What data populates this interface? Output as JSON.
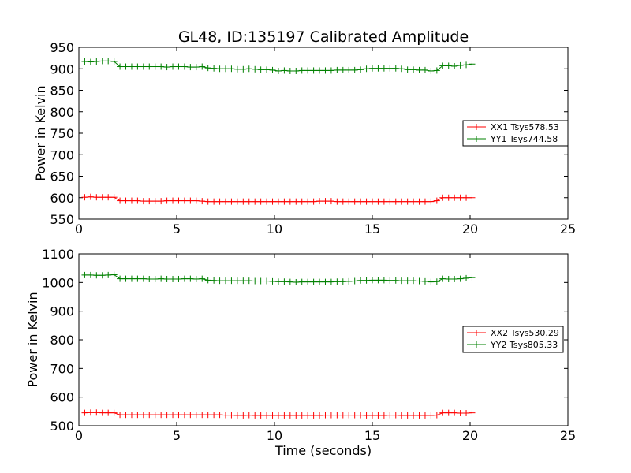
{
  "chart_data": [
    {
      "type": "line",
      "title": "GL48, ID:135197 Calibrated Amplitude",
      "xlabel": "",
      "ylabel": "Power in Kelvin",
      "xlim": [
        0,
        25
      ],
      "ylim": [
        550,
        950
      ],
      "xticks": [
        "0",
        "5",
        "10",
        "15",
        "20",
        "25"
      ],
      "yticks": [
        "550",
        "600",
        "650",
        "700",
        "750",
        "800",
        "850",
        "900",
        "950"
      ],
      "grid": false,
      "legend_position": "center-right",
      "x": [
        0.3,
        0.6,
        0.9,
        1.2,
        1.5,
        1.8,
        2.1,
        2.4,
        2.7,
        3.0,
        3.3,
        3.6,
        3.9,
        4.2,
        4.5,
        4.8,
        5.1,
        5.4,
        5.7,
        6.0,
        6.3,
        6.6,
        6.9,
        7.2,
        7.5,
        7.8,
        8.1,
        8.4,
        8.7,
        9.0,
        9.3,
        9.6,
        9.9,
        10.2,
        10.5,
        10.8,
        11.1,
        11.4,
        11.7,
        12.0,
        12.3,
        12.6,
        12.9,
        13.2,
        13.5,
        13.8,
        14.1,
        14.4,
        14.7,
        15.0,
        15.3,
        15.6,
        15.9,
        16.2,
        16.5,
        16.8,
        17.1,
        17.4,
        17.7,
        18.0,
        18.3,
        18.6,
        18.9,
        19.2,
        19.5,
        19.8,
        20.1
      ],
      "series": [
        {
          "name": "XX1 Tsys578.53",
          "color": "#ff0000",
          "values": [
            601,
            602,
            601,
            601,
            601,
            601,
            593,
            593,
            593,
            593,
            592,
            592,
            592,
            592,
            593,
            593,
            593,
            593,
            593,
            593,
            592,
            591,
            591,
            591,
            591,
            591,
            591,
            591,
            591,
            591,
            591,
            591,
            591,
            591,
            591,
            591,
            591,
            591,
            591,
            591,
            592,
            592,
            592,
            591,
            591,
            591,
            591,
            591,
            591,
            591,
            591,
            591,
            591,
            591,
            591,
            591,
            591,
            591,
            591,
            591,
            593,
            600,
            600,
            600,
            600,
            600,
            600
          ]
        },
        {
          "name": "YY1 Tsys744.58",
          "color": "#008000",
          "values": [
            917,
            916,
            917,
            918,
            918,
            917,
            905,
            905,
            905,
            905,
            905,
            905,
            905,
            905,
            904,
            905,
            905,
            905,
            904,
            904,
            905,
            902,
            901,
            900,
            900,
            900,
            899,
            899,
            900,
            899,
            898,
            898,
            897,
            895,
            896,
            895,
            895,
            896,
            896,
            896,
            896,
            896,
            896,
            897,
            897,
            897,
            897,
            898,
            900,
            901,
            901,
            901,
            901,
            901,
            900,
            898,
            898,
            897,
            897,
            895,
            896,
            907,
            907,
            906,
            908,
            909,
            911
          ]
        }
      ]
    },
    {
      "type": "line",
      "title": "",
      "xlabel": "Time (seconds)",
      "ylabel": "Power in Kelvin",
      "xlim": [
        0,
        25
      ],
      "ylim": [
        500,
        1100
      ],
      "xticks": [
        "0",
        "5",
        "10",
        "15",
        "20",
        "25"
      ],
      "yticks": [
        "500",
        "600",
        "700",
        "800",
        "900",
        "1000",
        "1100"
      ],
      "grid": false,
      "legend_position": "center-right",
      "x": [
        0.3,
        0.6,
        0.9,
        1.2,
        1.5,
        1.8,
        2.1,
        2.4,
        2.7,
        3.0,
        3.3,
        3.6,
        3.9,
        4.2,
        4.5,
        4.8,
        5.1,
        5.4,
        5.7,
        6.0,
        6.3,
        6.6,
        6.9,
        7.2,
        7.5,
        7.8,
        8.1,
        8.4,
        8.7,
        9.0,
        9.3,
        9.6,
        9.9,
        10.2,
        10.5,
        10.8,
        11.1,
        11.4,
        11.7,
        12.0,
        12.3,
        12.6,
        12.9,
        13.2,
        13.5,
        13.8,
        14.1,
        14.4,
        14.7,
        15.0,
        15.3,
        15.6,
        15.9,
        16.2,
        16.5,
        16.8,
        17.1,
        17.4,
        17.7,
        18.0,
        18.3,
        18.6,
        18.9,
        19.2,
        19.5,
        19.8,
        20.1
      ],
      "series": [
        {
          "name": "XX2 Tsys530.29",
          "color": "#ff0000",
          "values": [
            545,
            546,
            546,
            545,
            545,
            545,
            538,
            538,
            538,
            538,
            538,
            538,
            538,
            538,
            538,
            538,
            538,
            538,
            538,
            538,
            538,
            538,
            538,
            538,
            537,
            537,
            536,
            536,
            537,
            536,
            536,
            536,
            536,
            536,
            536,
            536,
            536,
            536,
            536,
            536,
            536,
            537,
            537,
            537,
            537,
            537,
            537,
            537,
            536,
            536,
            536,
            536,
            537,
            537,
            536,
            536,
            536,
            536,
            536,
            536,
            537,
            545,
            545,
            545,
            544,
            544,
            545
          ]
        },
        {
          "name": "YY2 Tsys805.33",
          "color": "#008000",
          "values": [
            1026,
            1026,
            1025,
            1025,
            1026,
            1027,
            1013,
            1013,
            1013,
            1013,
            1013,
            1012,
            1012,
            1013,
            1012,
            1012,
            1012,
            1013,
            1013,
            1012,
            1013,
            1008,
            1007,
            1006,
            1006,
            1006,
            1006,
            1006,
            1006,
            1005,
            1005,
            1005,
            1004,
            1003,
            1003,
            1002,
            1001,
            1002,
            1002,
            1002,
            1002,
            1002,
            1002,
            1003,
            1003,
            1004,
            1005,
            1007,
            1007,
            1008,
            1008,
            1008,
            1007,
            1007,
            1006,
            1006,
            1006,
            1005,
            1004,
            1002,
            1003,
            1013,
            1012,
            1012,
            1013,
            1015,
            1017
          ]
        }
      ]
    }
  ]
}
